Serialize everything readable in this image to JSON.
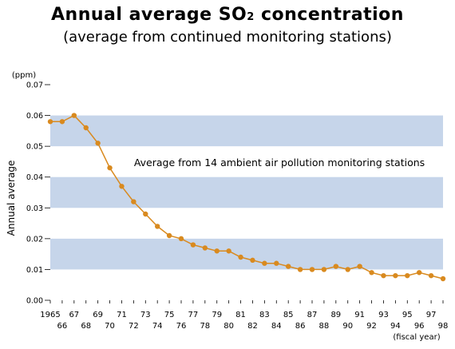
{
  "chart_data": {
    "type": "line",
    "title": "Annual average SO",
    "title_subscript": "2",
    "title_suffix": " concentration",
    "subtitle": "(average from continued monitoring stations)",
    "ylabel": "Annual average",
    "yunit": "(ppm)",
    "xunit": "(fiscal year)",
    "annotation": "Average from 14 ambient air pollution monitoring stations",
    "ylim": [
      0,
      0.07
    ],
    "yticks": [
      "0.00",
      "0.01",
      "0.02",
      "0.03",
      "0.04",
      "0.05",
      "0.06",
      "0.07"
    ],
    "x_tick_labels_top": [
      "1965",
      "67",
      "69",
      "71",
      "73",
      "75",
      "77",
      "79",
      "81",
      "83",
      "85",
      "87",
      "89",
      "91",
      "93",
      "95",
      "97"
    ],
    "x_tick_labels_bottom": [
      "66",
      "68",
      "70",
      "72",
      "74",
      "76",
      "78",
      "80",
      "82",
      "84",
      "86",
      "88",
      "90",
      "92",
      "94",
      "96",
      "98"
    ],
    "band_color": "#c6d5ea",
    "line_color": "#d98a1f",
    "series": [
      {
        "x": [
          1965,
          1966,
          1967,
          1968,
          1969,
          1970,
          1971,
          1972,
          1973,
          1974,
          1975,
          1976,
          1977,
          1978,
          1979,
          1980,
          1981,
          1982,
          1983,
          1984,
          1985,
          1986,
          1987,
          1988,
          1989,
          1990,
          1991,
          1992,
          1993,
          1994,
          1995,
          1996,
          1997,
          1998
        ],
        "values": [
          0.058,
          0.058,
          0.06,
          0.056,
          0.051,
          0.043,
          0.037,
          0.032,
          0.028,
          0.024,
          0.021,
          0.02,
          0.018,
          0.017,
          0.016,
          0.016,
          0.014,
          0.013,
          0.012,
          0.012,
          0.011,
          0.01,
          0.01,
          0.01,
          0.011,
          0.01,
          0.011,
          0.009,
          0.008,
          0.008,
          0.008,
          0.009,
          0.008,
          0.007
        ]
      }
    ]
  }
}
